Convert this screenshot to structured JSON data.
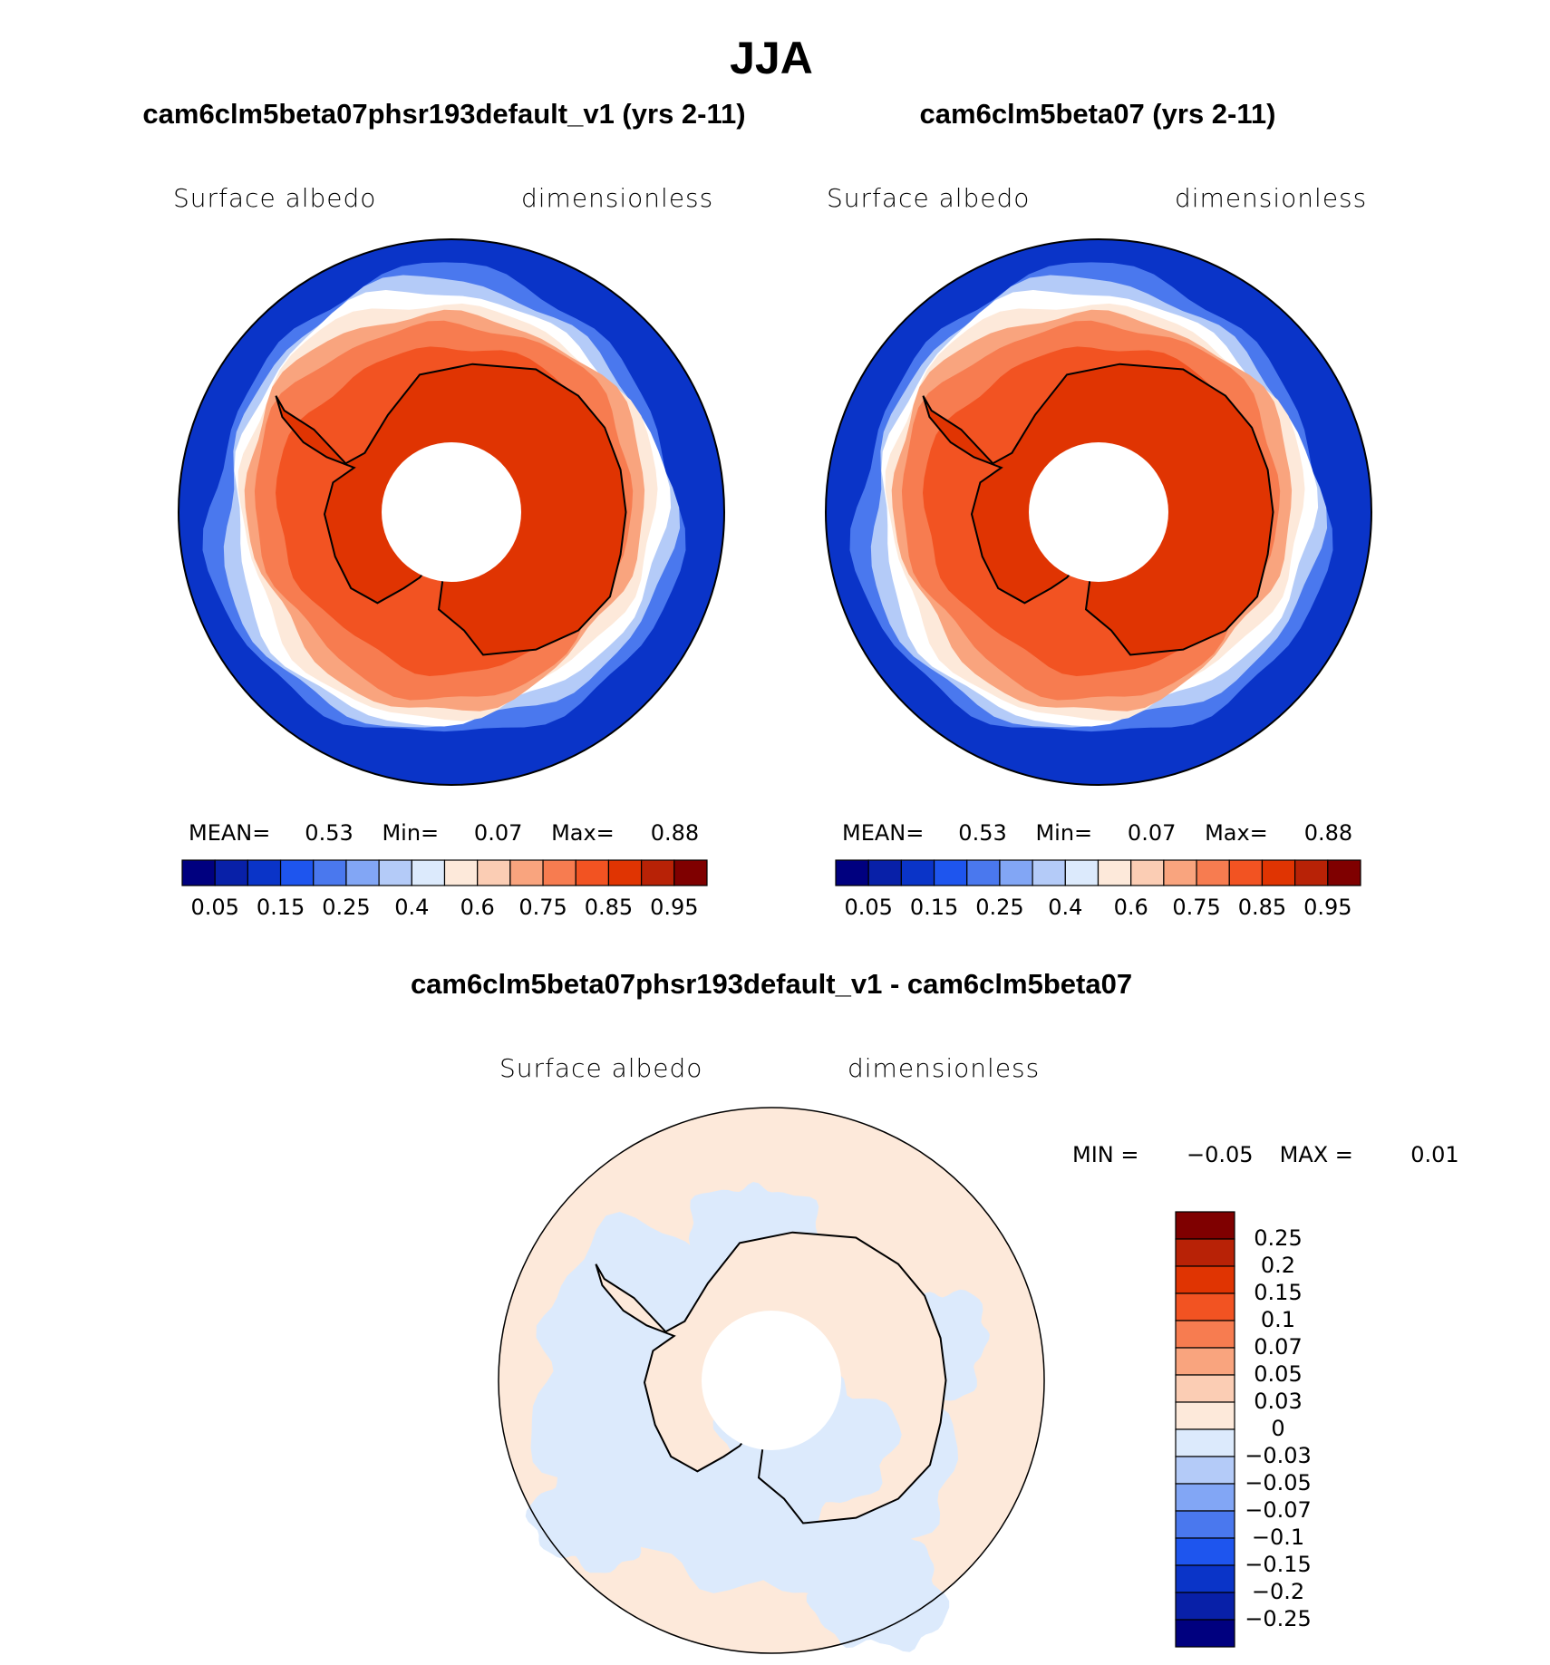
{
  "title": "JJA",
  "panels": [
    {
      "title": "cam6clm5beta07phsr193default_v1 (yrs 2-11)",
      "left_label": "Surface albedo",
      "right_label": "dimensionless",
      "stats": [
        "MEAN=",
        "0.53",
        "Min=",
        "0.07",
        "Max=",
        "0.88"
      ]
    },
    {
      "title": "cam6clm5beta07 (yrs 2-11)",
      "left_label": "Surface albedo",
      "right_label": "dimensionless",
      "stats": [
        "MEAN=",
        "0.53",
        "Min=",
        "0.07",
        "Max=",
        "0.88"
      ]
    }
  ],
  "colorbar": {
    "labels": [
      "0.05",
      "0.15",
      "0.25",
      "0.4",
      "0.6",
      "0.75",
      "0.85",
      "0.95"
    ],
    "colors": [
      "#00007f",
      "#0820a8",
      "#0a34c8",
      "#1e55ee",
      "#4a78ee",
      "#82a6f5",
      "#b4cbf8",
      "#dceafc",
      "#fde9da",
      "#fbcdb4",
      "#f9a47e",
      "#f77c50",
      "#f25322",
      "#e03402",
      "#b82206",
      "#7f0000"
    ]
  },
  "difference": {
    "title": "cam6clm5beta07phsr193default_v1 - cam6clm5beta07",
    "left_label": "Surface albedo",
    "right_label": "dimensionless",
    "stats": [
      "MIN =",
      "−0.05",
      "MAX =",
      "0.01"
    ],
    "colorbar": {
      "labels": [
        "0.25",
        "0.2",
        "0.15",
        "0.1",
        "0.07",
        "0.05",
        "0.03",
        "0",
        "−0.03",
        "−0.05",
        "−0.07",
        "−0.1",
        "−0.15",
        "−0.2",
        "−0.25"
      ]
    }
  }
}
